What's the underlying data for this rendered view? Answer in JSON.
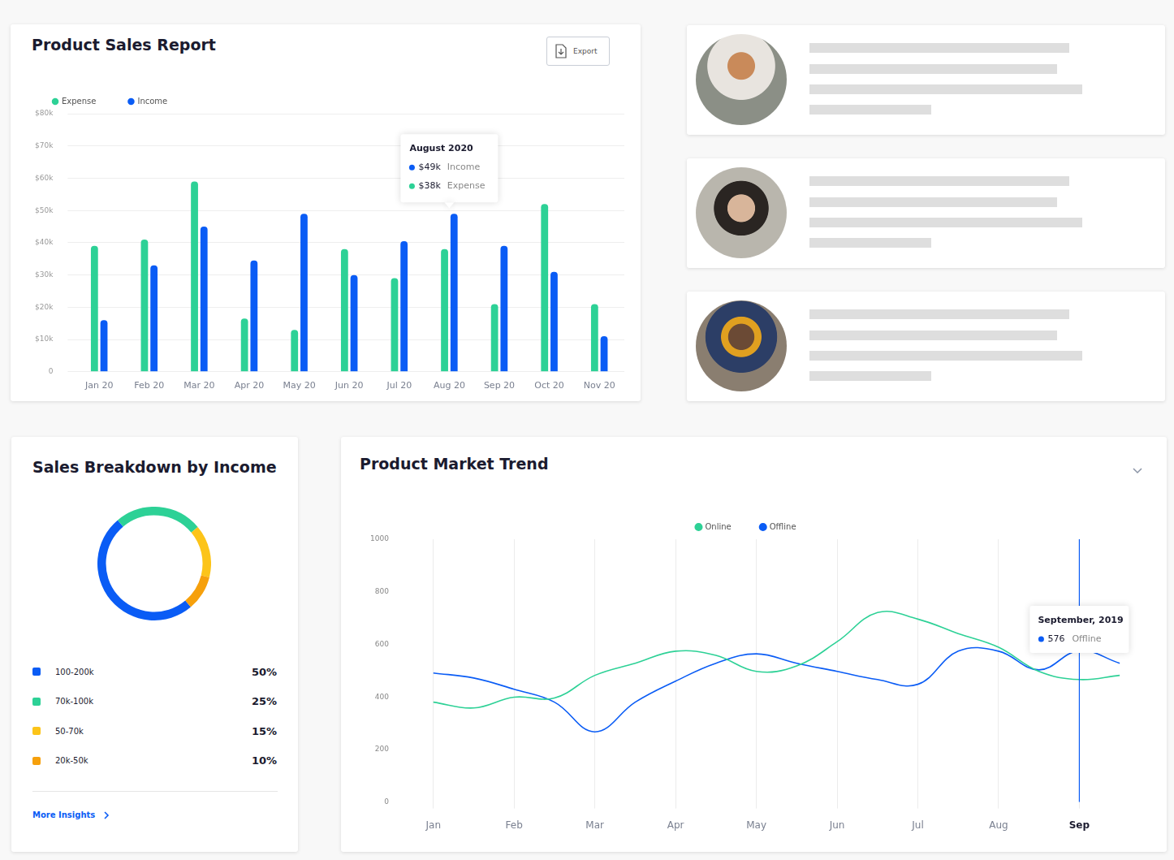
{
  "chart_data": [
    {
      "type": "bar",
      "title": "Product Sales Report",
      "button": "Export",
      "categories": [
        "Jan 20",
        "Feb 20",
        "Mar 20",
        "Apr 20",
        "May 20",
        "Jun 20",
        "Jul 20",
        "Aug 20",
        "Sep 20",
        "Oct 20",
        "Nov 20"
      ],
      "series": [
        {
          "name": "Expense",
          "color": "#2dd196",
          "values": [
            39,
            41,
            59,
            16.5,
            13,
            38,
            29,
            38,
            21,
            52,
            21
          ]
        },
        {
          "name": "Income",
          "color": "#0a5cf5",
          "values": [
            16,
            33,
            45,
            34.5,
            49,
            30,
            40.5,
            49,
            39,
            31,
            11
          ]
        }
      ],
      "ylim": [
        0,
        80
      ],
      "yticks": [
        0,
        {
          "value": 10,
          "label": "$10k"
        },
        {
          "value": 20,
          "label": "$20k"
        },
        {
          "value": 30,
          "label": "$30k"
        },
        {
          "value": 40,
          "label": "$40k"
        },
        {
          "value": 50,
          "label": "$50k"
        },
        {
          "value": 60,
          "label": "$60k"
        },
        {
          "value": 70,
          "label": "$70k"
        },
        {
          "value": 80,
          "label": "$80k"
        }
      ],
      "grid": "y",
      "legend": "top-left",
      "annotation": {
        "category": "Aug 20",
        "title": "August 2020",
        "entries": [
          {
            "series": "Income",
            "text": "$49k"
          },
          {
            "series": "Expense",
            "text": "$38k"
          }
        ]
      }
    },
    {
      "type": "doughnut",
      "title": "Sales Breakdown by Income",
      "categories": [
        "100-200k",
        "70k-100k",
        "50-70k",
        "20k-50k"
      ],
      "values": [
        50,
        25,
        15,
        10
      ],
      "value_labels": [
        "50%",
        "25%",
        "15%",
        "10%"
      ],
      "colors": [
        "#0a5cf5",
        "#2dd196",
        "#fcc419",
        "#f6a00c"
      ],
      "legend": "bottom",
      "link": "More Insights"
    },
    {
      "type": "line",
      "title": "Product Market Trend",
      "categories": [
        "Jan",
        null,
        "Feb",
        null,
        "Mar",
        null,
        "Apr",
        null,
        "May",
        null,
        "Jun",
        null,
        "Jul",
        null,
        "Aug",
        null,
        "Sep",
        null
      ],
      "series": [
        {
          "name": "Online",
          "color": "#2dd196",
          "values": [
            380,
            358,
            399,
            396,
            482,
            528,
            574,
            558,
            497,
            518,
            610,
            721,
            696,
            641,
            589,
            497,
            466,
            482
          ]
        },
        {
          "name": "Offline",
          "color": "#0a5cf5",
          "values": [
            491,
            472,
            429,
            380,
            267,
            380,
            460,
            528,
            564,
            528,
            497,
            466,
            448,
            574,
            574,
            503,
            576,
            528
          ]
        }
      ],
      "ylim": [
        0,
        1000
      ],
      "yticks": [
        0,
        200,
        400,
        600,
        800,
        1000
      ],
      "grid": "x",
      "legend": "top",
      "annotation": {
        "x": "Sep",
        "title": "September, 2019",
        "series": "Offline",
        "value": 576
      }
    }
  ]
}
